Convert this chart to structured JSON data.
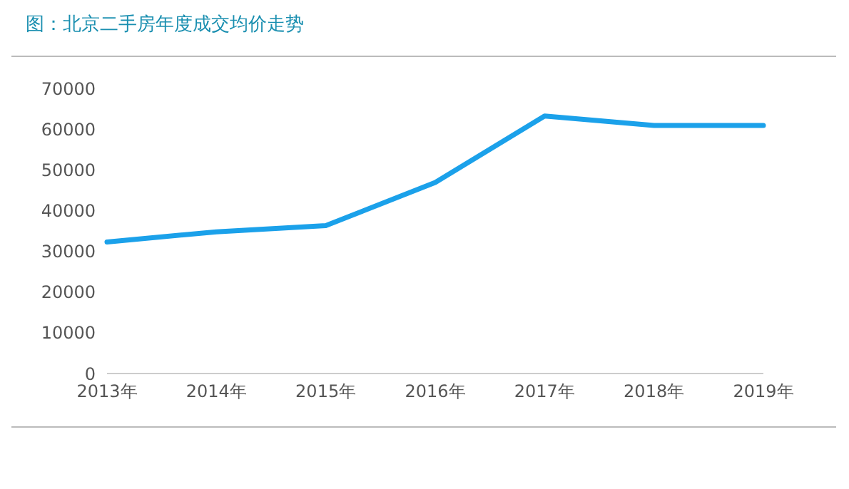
{
  "chart_data": {
    "type": "line",
    "title": "图：北京二手房年度成交均价走势",
    "categories": [
      "2013年",
      "2014年",
      "2015年",
      "2016年",
      "2017年",
      "2018年",
      "2019年"
    ],
    "series": [
      {
        "color": "#1ba1ea",
        "values": [
          32300,
          34800,
          36300,
          46900,
          63200,
          60900,
          60900
        ]
      }
    ],
    "ylim": [
      0,
      70000
    ],
    "yticks": [
      0,
      10000,
      20000,
      30000,
      40000,
      50000,
      60000,
      70000
    ],
    "grid": false,
    "legend": false,
    "marker": "none",
    "line_style": "solid"
  }
}
